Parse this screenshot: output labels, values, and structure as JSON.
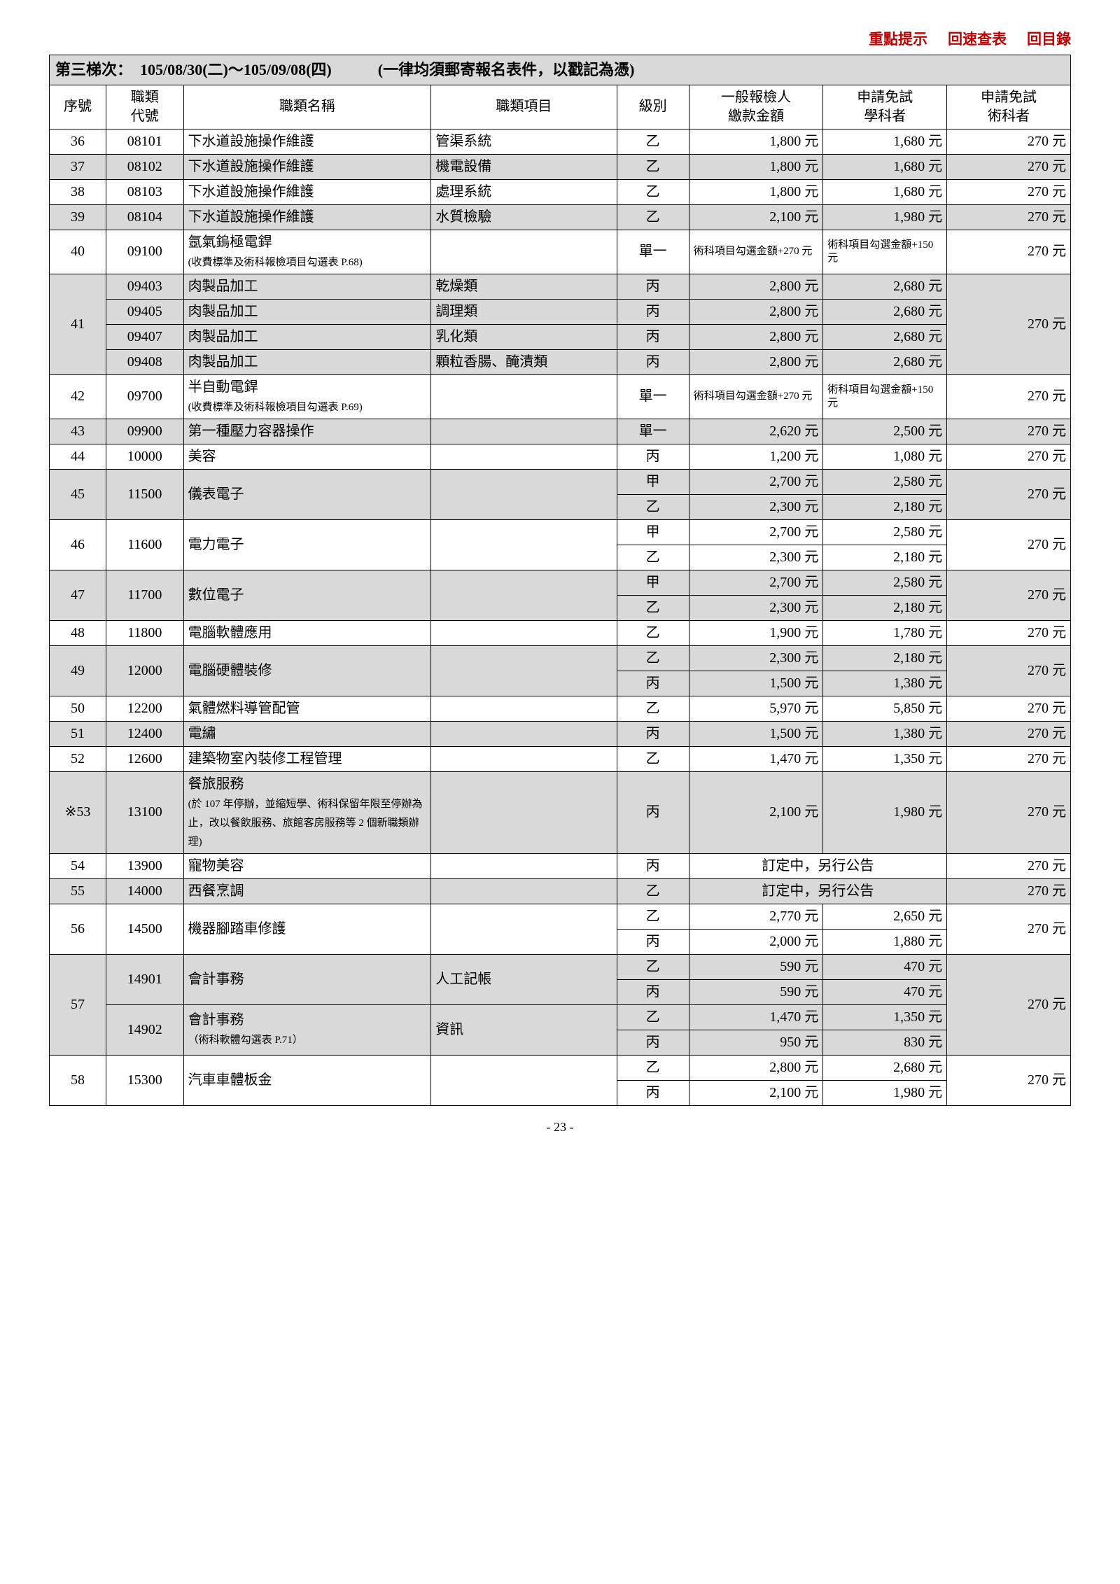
{
  "topLinks": [
    "重點提示",
    "回速查表",
    "回目錄"
  ],
  "titleRow": "第三梯次：　105/08/30(二)～105/09/08(四)　　　(一律均須郵寄報名表件，以戳記為憑)",
  "headers": {
    "seq": "序號",
    "code": "職類\n代號",
    "name": "職類名稱",
    "item": "職類項目",
    "level": "級別",
    "fee1": "一般報檢人\n繳款金額",
    "fee2": "申請免試\n學科者",
    "fee3": "申請免試\n術科者"
  },
  "rows": [
    {
      "type": "simple",
      "shade": false,
      "seq": "36",
      "code": "08101",
      "name": "下水道設施操作維護",
      "item": "管渠系統",
      "level": "乙",
      "f1": "1,800 元",
      "f2": "1,680 元",
      "f3": "270 元"
    },
    {
      "type": "simple",
      "shade": true,
      "seq": "37",
      "code": "08102",
      "name": "下水道設施操作維護",
      "item": "機電設備",
      "level": "乙",
      "f1": "1,800 元",
      "f2": "1,680 元",
      "f3": "270 元"
    },
    {
      "type": "simple",
      "shade": false,
      "seq": "38",
      "code": "08103",
      "name": "下水道設施操作維護",
      "item": "處理系統",
      "level": "乙",
      "f1": "1,800 元",
      "f2": "1,680 元",
      "f3": "270 元"
    },
    {
      "type": "simple",
      "shade": true,
      "seq": "39",
      "code": "08104",
      "name": "下水道設施操作維護",
      "item": "水質檢驗",
      "level": "乙",
      "f1": "2,100 元",
      "f2": "1,980 元",
      "f3": "270 元"
    },
    {
      "type": "simple",
      "shade": false,
      "seq": "40",
      "code": "09100",
      "name": "氬氣鎢極電銲",
      "nameSmall": "(收費標準及術科報檢項目勾選表 P.68)",
      "item": "",
      "level": "單一",
      "f1": "術科項目勾選金額+270 元",
      "f2": "術科項目勾選金額+150 元",
      "f3": "270 元",
      "f1small": true,
      "f2small": true
    },
    {
      "type": "group41",
      "shade": true
    },
    {
      "type": "simple",
      "shade": false,
      "seq": "42",
      "code": "09700",
      "name": "半自動電銲",
      "nameSmall": "(收費標準及術科報檢項目勾選表 P.69)",
      "item": "",
      "level": "單一",
      "f1": "術科項目勾選金額+270 元",
      "f2": "術科項目勾選金額+150 元",
      "f3": "270 元",
      "f1small": true,
      "f2small": true
    },
    {
      "type": "simple",
      "shade": true,
      "seq": "43",
      "code": "09900",
      "name": "第一種壓力容器操作",
      "item": "",
      "level": "單一",
      "f1": "2,620 元",
      "f2": "2,500 元",
      "f3": "270 元"
    },
    {
      "type": "simple",
      "shade": false,
      "seq": "44",
      "code": "10000",
      "name": "美容",
      "item": "",
      "level": "丙",
      "f1": "1,200 元",
      "f2": "1,080 元",
      "f3": "270 元"
    },
    {
      "type": "dual",
      "shade": true,
      "seq": "45",
      "code": "11500",
      "name": "儀表電子",
      "sub": [
        [
          "甲",
          "2,700 元",
          "2,580 元"
        ],
        [
          "乙",
          "2,300 元",
          "2,180 元"
        ]
      ],
      "f3": "270 元"
    },
    {
      "type": "dual",
      "shade": false,
      "seq": "46",
      "code": "11600",
      "name": "電力電子",
      "sub": [
        [
          "甲",
          "2,700 元",
          "2,580 元"
        ],
        [
          "乙",
          "2,300 元",
          "2,180 元"
        ]
      ],
      "f3": "270 元"
    },
    {
      "type": "dual",
      "shade": true,
      "seq": "47",
      "code": "11700",
      "name": "數位電子",
      "sub": [
        [
          "甲",
          "2,700 元",
          "2,580 元"
        ],
        [
          "乙",
          "2,300 元",
          "2,180 元"
        ]
      ],
      "f3": "270 元"
    },
    {
      "type": "simple",
      "shade": false,
      "seq": "48",
      "code": "11800",
      "name": "電腦軟體應用",
      "item": "",
      "level": "乙",
      "f1": "1,900 元",
      "f2": "1,780 元",
      "f3": "270 元"
    },
    {
      "type": "dual",
      "shade": true,
      "seq": "49",
      "code": "12000",
      "name": "電腦硬體裝修",
      "sub": [
        [
          "乙",
          "2,300 元",
          "2,180 元"
        ],
        [
          "丙",
          "1,500 元",
          "1,380 元"
        ]
      ],
      "f3": "270 元"
    },
    {
      "type": "simple",
      "shade": false,
      "seq": "50",
      "code": "12200",
      "name": "氣體燃料導管配管",
      "item": "",
      "level": "乙",
      "f1": "5,970 元",
      "f2": "5,850 元",
      "f3": "270 元"
    },
    {
      "type": "simple",
      "shade": true,
      "seq": "51",
      "code": "12400",
      "name": "電繡",
      "item": "",
      "level": "丙",
      "f1": "1,500 元",
      "f2": "1,380 元",
      "f3": "270 元"
    },
    {
      "type": "simple",
      "shade": false,
      "seq": "52",
      "code": "12600",
      "name": "建築物室內裝修工程管理",
      "item": "",
      "level": "乙",
      "f1": "1,470 元",
      "f2": "1,350 元",
      "f3": "270 元"
    },
    {
      "type": "simple",
      "shade": true,
      "seq": "※53",
      "code": "13100",
      "name": "餐旅服務",
      "nameSmall": "(於 107 年停辦，並縮短學、術科保留年限至停辦為止，改以餐飲服務、旅館客房服務等 2 個新職類辦理)",
      "item": "",
      "level": "丙",
      "f1": "2,100 元",
      "f2": "1,980 元",
      "f3": "270 元"
    },
    {
      "type": "announce",
      "shade": false,
      "seq": "54",
      "code": "13900",
      "name": "寵物美容",
      "level": "丙",
      "announce": "訂定中，另行公告",
      "f3": "270 元"
    },
    {
      "type": "announce",
      "shade": true,
      "seq": "55",
      "code": "14000",
      "name": "西餐烹調",
      "level": "乙",
      "announce": "訂定中，另行公告",
      "f3": "270 元"
    },
    {
      "type": "dual",
      "shade": false,
      "seq": "56",
      "code": "14500",
      "name": "機器腳踏車修護",
      "sub": [
        [
          "乙",
          "2,770 元",
          "2,650 元"
        ],
        [
          "丙",
          "2,000 元",
          "1,880 元"
        ]
      ],
      "f3": "270 元"
    },
    {
      "type": "group57",
      "shade": true
    },
    {
      "type": "dual",
      "shade": false,
      "seq": "58",
      "code": "15300",
      "name": "汽車車體板金",
      "sub": [
        [
          "乙",
          "2,800 元",
          "2,680 元"
        ],
        [
          "丙",
          "2,100 元",
          "1,980 元"
        ]
      ],
      "f3": "270 元"
    }
  ],
  "group41": {
    "seq": "41",
    "f3": "270 元",
    "rows": [
      {
        "code": "09403",
        "name": "肉製品加工",
        "item": "乾燥類",
        "level": "丙",
        "f1": "2,800 元",
        "f2": "2,680 元"
      },
      {
        "code": "09405",
        "name": "肉製品加工",
        "item": "調理類",
        "level": "丙",
        "f1": "2,800 元",
        "f2": "2,680 元"
      },
      {
        "code": "09407",
        "name": "肉製品加工",
        "item": "乳化類",
        "level": "丙",
        "f1": "2,800 元",
        "f2": "2,680 元"
      },
      {
        "code": "09408",
        "name": "肉製品加工",
        "item": "顆粒香腸、醃漬類",
        "level": "丙",
        "f1": "2,800 元",
        "f2": "2,680 元"
      }
    ]
  },
  "group57": {
    "seq": "57",
    "f3": "270 元",
    "blocks": [
      {
        "code": "14901",
        "name": "會計事務",
        "nameSmall": "",
        "item": "人工記帳",
        "sub": [
          [
            "乙",
            "590 元",
            "470 元"
          ],
          [
            "丙",
            "590 元",
            "470 元"
          ]
        ]
      },
      {
        "code": "14902",
        "name": "會計事務",
        "nameSmall": "（術科軟體勾選表 P.71）",
        "item": "資訊",
        "sub": [
          [
            "乙",
            "1,470 元",
            "1,350 元"
          ],
          [
            "丙",
            "950 元",
            "830 元"
          ]
        ]
      }
    ]
  },
  "pageNumber": "- 23 -"
}
